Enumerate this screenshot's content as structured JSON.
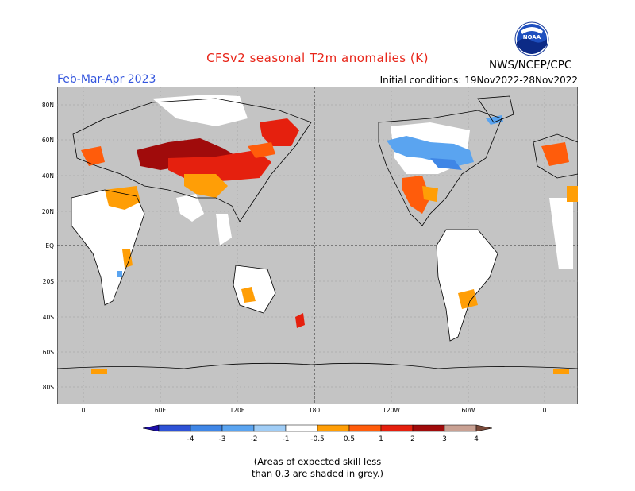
{
  "header": {
    "title": "CFSv2 seasonal T2m anomalies (K)",
    "season": "Feb-Mar-Apr 2023",
    "initial_conditions": "Initial conditions: 19Nov2022-28Nov2022",
    "agency": "NWS/NCEP/CPC",
    "logo_text": "NOAA"
  },
  "axes": {
    "lat_labels": [
      "80N",
      "60N",
      "40N",
      "20N",
      "EQ",
      "20S",
      "40S",
      "60S",
      "80S"
    ],
    "lon_labels": [
      "0",
      "60E",
      "120E",
      "180",
      "120W",
      "60W",
      "0"
    ]
  },
  "legend": {
    "tick_labels": [
      "-4",
      "-3",
      "-2",
      "-1",
      "-0.5",
      "0.5",
      "1",
      "2",
      "3",
      "4"
    ],
    "colors": [
      "#1b0da8",
      "#2e52d6",
      "#3f86e6",
      "#5aa4f0",
      "#a0cdf6",
      "#ffffff",
      "#ff9e06",
      "#ff5c0b",
      "#e5200e",
      "#a00b0b",
      "#c9a193",
      "#7a4a3a"
    ],
    "skill_grey": "#c4c4c4",
    "note_line1": "(Areas of expected skill less",
    "note_line2": "than 0.3 are shaded in grey.)"
  }
}
